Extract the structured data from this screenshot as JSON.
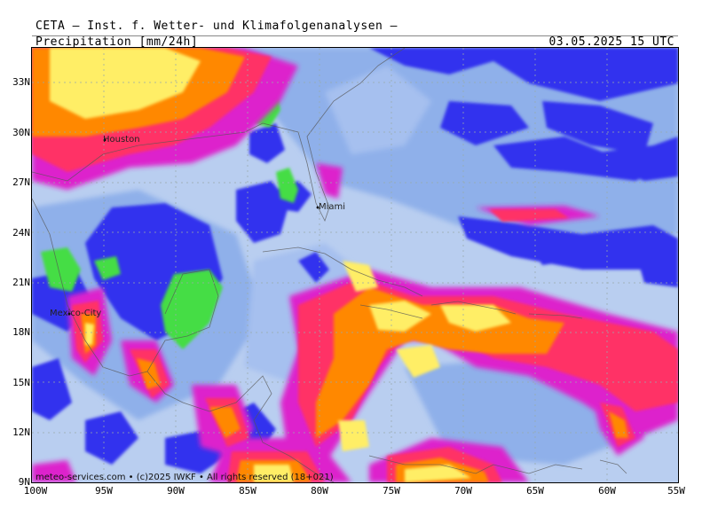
{
  "header": {
    "organization": "CETA — Inst. f. Wetter- und Klimafolgenanalysen —",
    "parameter": "Precipitation [mm/24h]",
    "timestamp": "03.05.2025 15 UTC"
  },
  "map": {
    "lat_labels": [
      "33N",
      "30N",
      "27N",
      "24N",
      "21N",
      "18N",
      "15N",
      "12N",
      "9N"
    ],
    "lon_labels": [
      "100W",
      "95W",
      "90W",
      "85W",
      "80W",
      "75W",
      "70W",
      "65W",
      "60W",
      "55W"
    ],
    "cities": {
      "houston": "Houston",
      "miami": "Miami",
      "mexico_city": "Mexico-City"
    },
    "copyright": "meteo-services.com • (c)2025 IWKF • All rights reserved (18+021)"
  },
  "colors": {
    "ocean_light": "#b9cef0",
    "band_mid": "#7aa0e6",
    "band_light": "#a7c2ee",
    "dry": "#3333ee",
    "land_dry": "#44dd44",
    "heavy_magenta": "#dd22cc",
    "heavy_pink": "#ff3388",
    "heavy_red": "#ff4422",
    "heavy_orange": "#ff8800",
    "heavy_yellow": "#ffee66"
  }
}
